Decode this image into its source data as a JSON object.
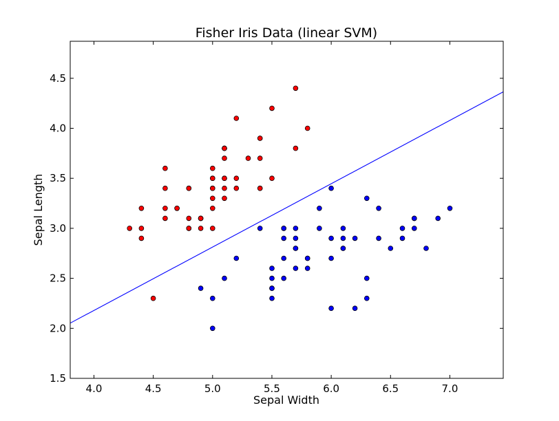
{
  "chart_data": {
    "type": "scatter",
    "title": "Fisher Iris Data (linear SVM)",
    "xlabel": "Sepal Width",
    "ylabel": "Sepal Length",
    "xlim": [
      3.8,
      7.45
    ],
    "ylim": [
      1.5,
      4.87
    ],
    "x_ticks": [
      "4.0",
      "4.5",
      "5.0",
      "5.5",
      "6.0",
      "6.5",
      "7.0"
    ],
    "y_ticks": [
      "1.5",
      "2.0",
      "2.5",
      "3.0",
      "3.5",
      "4.0",
      "4.5"
    ],
    "grid": false,
    "legend": "none",
    "series": [
      {
        "color": "#ff0000",
        "points": [
          [
            5.1,
            3.5
          ],
          [
            4.9,
            3.0
          ],
          [
            4.7,
            3.2
          ],
          [
            4.6,
            3.1
          ],
          [
            5.0,
            3.6
          ],
          [
            5.4,
            3.9
          ],
          [
            4.6,
            3.4
          ],
          [
            5.0,
            3.4
          ],
          [
            4.4,
            2.9
          ],
          [
            4.9,
            3.1
          ],
          [
            5.4,
            3.7
          ],
          [
            4.8,
            3.4
          ],
          [
            4.8,
            3.0
          ],
          [
            4.3,
            3.0
          ],
          [
            5.8,
            4.0
          ],
          [
            5.7,
            4.4
          ],
          [
            5.4,
            3.9
          ],
          [
            5.1,
            3.5
          ],
          [
            5.7,
            3.8
          ],
          [
            5.1,
            3.8
          ],
          [
            5.4,
            3.4
          ],
          [
            5.1,
            3.7
          ],
          [
            4.6,
            3.6
          ],
          [
            5.1,
            3.3
          ],
          [
            4.8,
            3.4
          ],
          [
            5.0,
            3.0
          ],
          [
            5.0,
            3.4
          ],
          [
            5.2,
            3.5
          ],
          [
            5.2,
            3.4
          ],
          [
            4.7,
            3.2
          ],
          [
            4.8,
            3.1
          ],
          [
            5.4,
            3.4
          ],
          [
            5.2,
            4.1
          ],
          [
            5.5,
            4.2
          ],
          [
            4.9,
            3.1
          ],
          [
            5.0,
            3.2
          ],
          [
            5.5,
            3.5
          ],
          [
            4.9,
            3.1
          ],
          [
            4.4,
            3.0
          ],
          [
            5.1,
            3.4
          ],
          [
            5.0,
            3.5
          ],
          [
            4.5,
            2.3
          ],
          [
            4.4,
            3.2
          ],
          [
            5.0,
            3.5
          ],
          [
            5.1,
            3.8
          ],
          [
            4.8,
            3.0
          ],
          [
            5.1,
            3.8
          ],
          [
            4.6,
            3.2
          ],
          [
            5.3,
            3.7
          ],
          [
            5.0,
            3.3
          ]
        ]
      },
      {
        "color": "#0000ff",
        "points": [
          [
            7.0,
            3.2
          ],
          [
            6.4,
            3.2
          ],
          [
            6.9,
            3.1
          ],
          [
            5.5,
            2.3
          ],
          [
            6.5,
            2.8
          ],
          [
            5.7,
            2.8
          ],
          [
            6.3,
            3.3
          ],
          [
            4.9,
            2.4
          ],
          [
            6.6,
            2.9
          ],
          [
            5.2,
            2.7
          ],
          [
            5.0,
            2.0
          ],
          [
            5.9,
            3.0
          ],
          [
            6.0,
            2.2
          ],
          [
            6.1,
            2.9
          ],
          [
            5.6,
            2.9
          ],
          [
            6.7,
            3.1
          ],
          [
            5.6,
            3.0
          ],
          [
            5.8,
            2.7
          ],
          [
            6.2,
            2.2
          ],
          [
            5.6,
            2.5
          ],
          [
            5.9,
            3.2
          ],
          [
            6.1,
            2.8
          ],
          [
            6.3,
            2.5
          ],
          [
            6.1,
            2.8
          ],
          [
            6.4,
            2.9
          ],
          [
            6.6,
            3.0
          ],
          [
            6.8,
            2.8
          ],
          [
            6.7,
            3.0
          ],
          [
            6.0,
            2.9
          ],
          [
            5.7,
            2.6
          ],
          [
            5.5,
            2.4
          ],
          [
            5.5,
            2.4
          ],
          [
            5.8,
            2.7
          ],
          [
            6.0,
            2.7
          ],
          [
            5.4,
            3.0
          ],
          [
            6.0,
            3.4
          ],
          [
            6.7,
            3.1
          ],
          [
            6.3,
            2.3
          ],
          [
            5.6,
            3.0
          ],
          [
            5.5,
            2.5
          ],
          [
            5.5,
            2.6
          ],
          [
            6.1,
            3.0
          ],
          [
            5.8,
            2.6
          ],
          [
            5.0,
            2.3
          ],
          [
            5.6,
            2.7
          ],
          [
            5.7,
            3.0
          ],
          [
            5.7,
            2.9
          ],
          [
            6.2,
            2.9
          ],
          [
            5.1,
            2.5
          ],
          [
            5.7,
            2.8
          ]
        ]
      }
    ],
    "boundary": {
      "color": "#0000ff",
      "slope": 0.6334,
      "intercept": -0.3546
    }
  }
}
